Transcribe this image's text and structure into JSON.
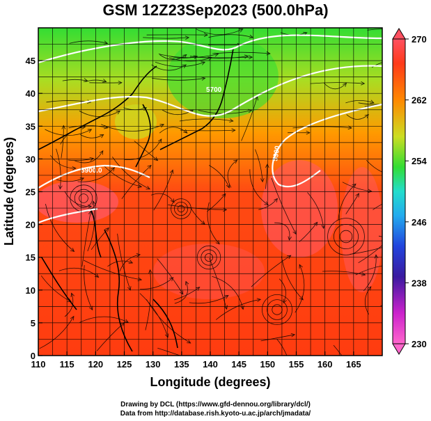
{
  "title": "GSM 12Z23Sep2023 (500.0hPa)",
  "credits": {
    "line1": "Drawing by DCL (https://www.gfd-dennou.org/library/dcl/)",
    "line2": "Data from http://database.rish.kyoto-u.ac.jp/arch/jmadata/"
  },
  "chart_data": {
    "type": "heatmap",
    "title": "GSM 12Z23Sep2023 (500.0hPa)",
    "xlabel": "Longitude (degrees)",
    "ylabel": "Latitude  (degrees)",
    "xlim": [
      110,
      170
    ],
    "ylim": [
      0,
      50
    ],
    "xticks": [
      110,
      115,
      120,
      125,
      130,
      135,
      140,
      145,
      150,
      155,
      160,
      165
    ],
    "yticks": [
      0,
      5,
      10,
      15,
      20,
      25,
      30,
      35,
      40,
      45
    ],
    "grid": true,
    "colorbar": {
      "range": [
        230,
        270
      ],
      "ticks": [
        230,
        238,
        246,
        254,
        262,
        270
      ],
      "colors": [
        "#ff66cc",
        "#cc22cc",
        "#3a1aa0",
        "#2244dd",
        "#22aaee",
        "#22ddcc",
        "#33dd33",
        "#ccdd22",
        "#ff8800",
        "#ff3a1a",
        "#ff5060"
      ]
    },
    "contour_labels": [
      "5700",
      "5900.0",
      "5900"
    ],
    "overlay": "streamlines"
  }
}
